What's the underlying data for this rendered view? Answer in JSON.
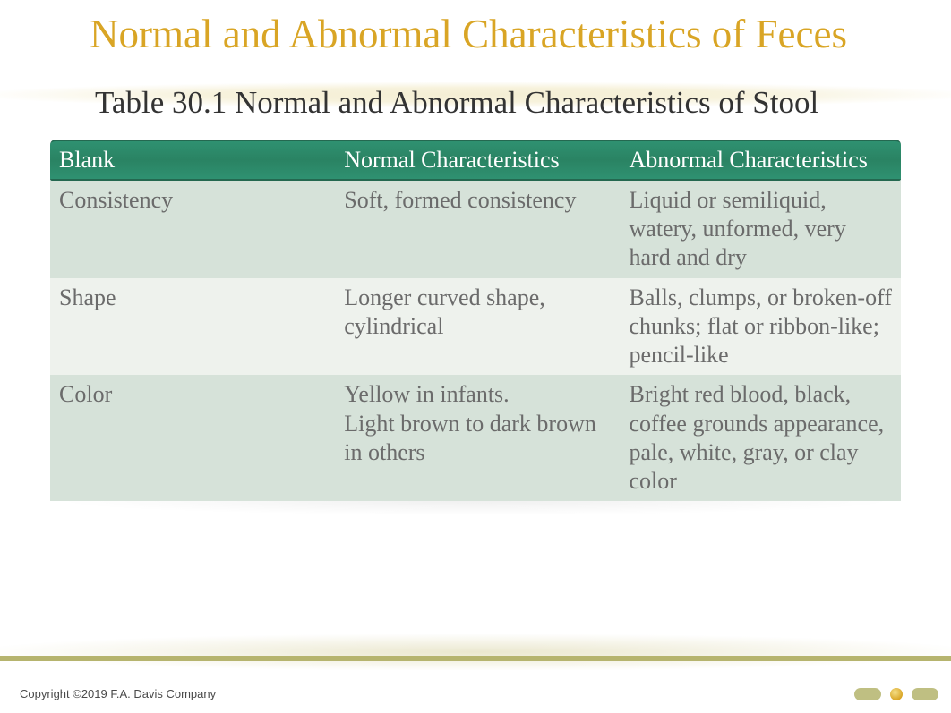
{
  "title": "Normal and Abnormal Characteristics of Feces",
  "subtitle": "Table 30.1 Normal and Abnormal Characteristics of Stool",
  "table": {
    "columns": [
      "Blank",
      "Normal Characteristics",
      "Abnormal Characteristics"
    ],
    "column_widths_pct": [
      33.5,
      33.5,
      33
    ],
    "header_bg": "#2e8b68",
    "header_text_color": "#ffffff",
    "row_odd_bg": "#d6e2d9",
    "row_even_bg": "#eef2ed",
    "cell_text_color": "#6b6b6b",
    "font_size_pt": 20,
    "rows": [
      {
        "label": "Consistency",
        "normal": "Soft, formed consistency",
        "abnormal": "Liquid or semiliquid, watery, unformed, very hard and dry"
      },
      {
        "label": "Shape",
        "normal": "Longer curved shape, cylindrical",
        "abnormal": "Balls, clumps, or broken-off chunks; flat or ribbon-like; pencil-like"
      },
      {
        "label": "Color",
        "normal": "Yellow in infants.\nLight brown to dark brown in others",
        "abnormal": "Bright red blood, black, coffee grounds appearance, pale, white, gray, or clay color"
      }
    ]
  },
  "copyright": "Copyright ©2019 F.A. Davis Company",
  "colors": {
    "title_color": "#d9a525",
    "subtitle_color": "#333333",
    "background": "#ffffff",
    "accent_band": "#b6b46e",
    "nav_btn": "#bfbf82",
    "nav_dot": "#d9a525"
  }
}
